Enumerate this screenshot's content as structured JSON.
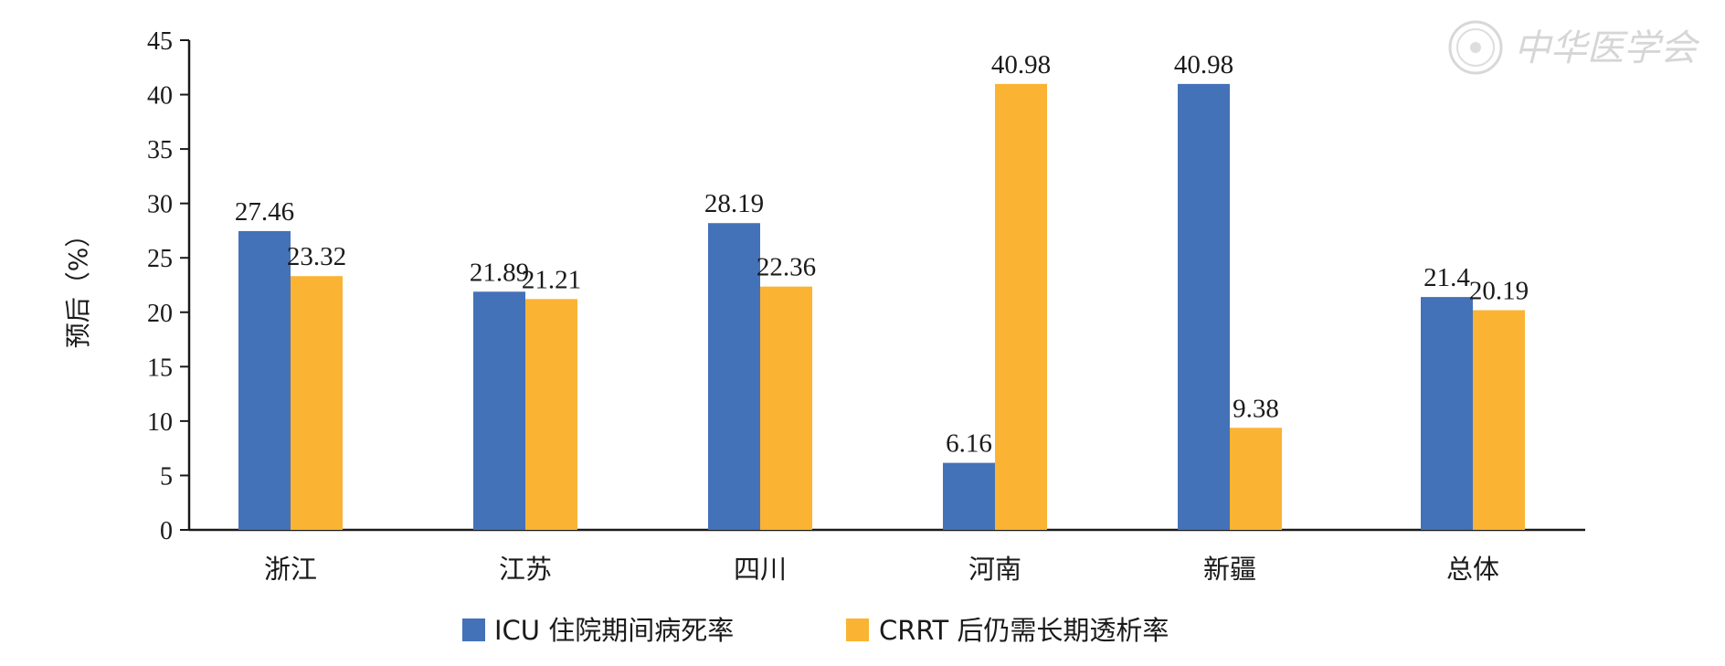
{
  "watermark": {
    "text": "中华医学会"
  },
  "colors": {
    "series1": "#4472b8",
    "series2": "#fbb334",
    "axis": "#1a1a1a"
  },
  "chart_data": {
    "type": "bar",
    "title": "",
    "xlabel": "",
    "ylabel": "预后（%）",
    "ylim": [
      0,
      45
    ],
    "yticks": [
      0,
      5,
      10,
      15,
      20,
      25,
      30,
      35,
      40,
      45
    ],
    "grid": false,
    "legend_position": "bottom",
    "categories": [
      "浙江",
      "江苏",
      "四川",
      "河南",
      "新疆",
      "总体"
    ],
    "series": [
      {
        "name": "ICU 住院期间病死率",
        "values": [
          27.46,
          21.89,
          28.19,
          6.16,
          40.98,
          21.4
        ],
        "labels": [
          "27.46",
          "21.89",
          "28.19",
          "6.16",
          "40.98",
          "21.4"
        ]
      },
      {
        "name": "CRRT 后仍需长期透析率",
        "values": [
          23.32,
          21.21,
          22.36,
          40.98,
          9.38,
          20.19
        ],
        "labels": [
          "23.32",
          "21.21",
          "22.36",
          "40.98",
          "9.38",
          "20.19"
        ]
      }
    ]
  }
}
